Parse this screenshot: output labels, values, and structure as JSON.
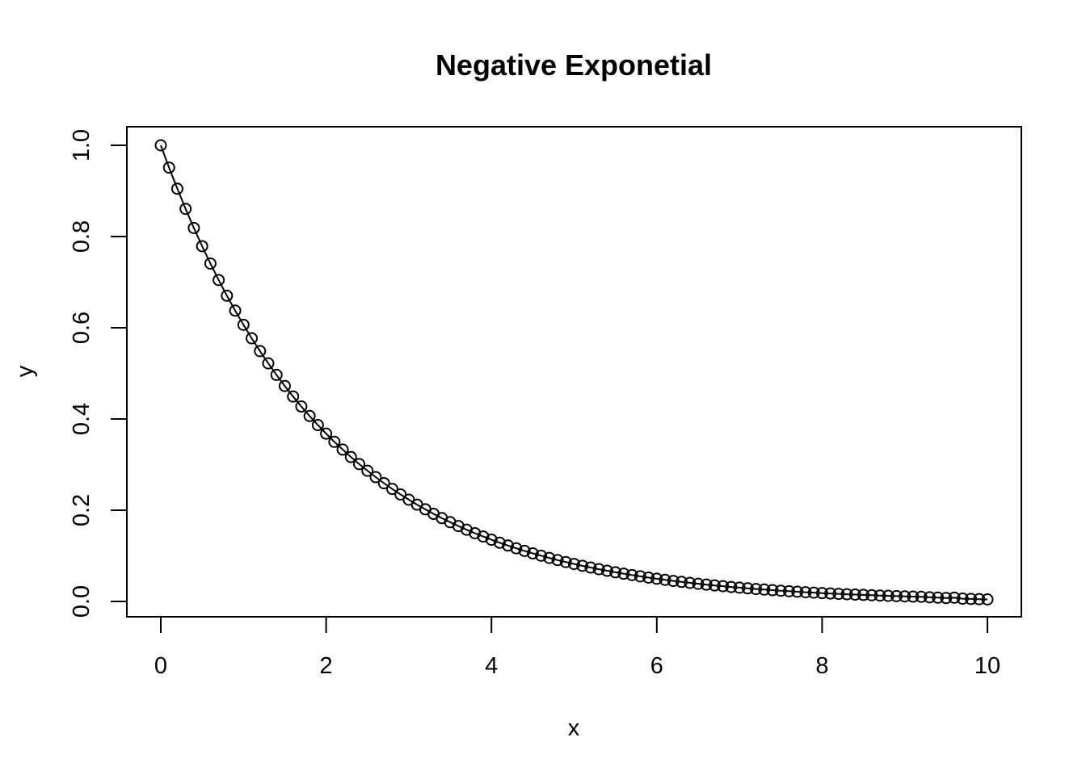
{
  "chart_data": {
    "type": "line",
    "title": "Negative Exponetial",
    "xlabel": "x",
    "ylabel": "y",
    "xlim": [
      0,
      10
    ],
    "ylim": [
      0,
      1
    ],
    "x_ticks": [
      0,
      2,
      4,
      6,
      8,
      10
    ],
    "y_ticks": [
      0.0,
      0.2,
      0.4,
      0.6,
      0.8,
      1.0
    ],
    "x_tick_labels": [
      "0",
      "2",
      "4",
      "6",
      "8",
      "10"
    ],
    "y_tick_labels": [
      "0.0",
      "0.2",
      "0.4",
      "0.6",
      "0.8",
      "1.0"
    ],
    "grid": false,
    "legend": "none",
    "marker": "open-circle",
    "line_color": "#000000",
    "series": [
      {
        "x": [
          0.0,
          0.1,
          0.2,
          0.3,
          0.4,
          0.5,
          0.6,
          0.7,
          0.8,
          0.9,
          1.0,
          1.1,
          1.2,
          1.3,
          1.4,
          1.5,
          1.6,
          1.7,
          1.8,
          1.9,
          2.0,
          2.1,
          2.2,
          2.3,
          2.4,
          2.5,
          2.6,
          2.7,
          2.8,
          2.9,
          3.0,
          3.1,
          3.2,
          3.3,
          3.4,
          3.5,
          3.6,
          3.7,
          3.8,
          3.9,
          4.0,
          4.1,
          4.2,
          4.3,
          4.4,
          4.5,
          4.6,
          4.7,
          4.8,
          4.9,
          5.0,
          5.1,
          5.2,
          5.3,
          5.4,
          5.5,
          5.6,
          5.7,
          5.8,
          5.9,
          6.0,
          6.1,
          6.2,
          6.3,
          6.4,
          6.5,
          6.6,
          6.7,
          6.8,
          6.9,
          7.0,
          7.1,
          7.2,
          7.3,
          7.4,
          7.5,
          7.6,
          7.7,
          7.8,
          7.9,
          8.0,
          8.1,
          8.2,
          8.3,
          8.4,
          8.5,
          8.6,
          8.7,
          8.8,
          8.9,
          9.0,
          9.1,
          9.2,
          9.3,
          9.4,
          9.5,
          9.6,
          9.7,
          9.8,
          9.9,
          10.0
        ],
        "y": [
          1.0,
          0.9512,
          0.9048,
          0.8607,
          0.8187,
          0.7788,
          0.7408,
          0.7047,
          0.6703,
          0.6376,
          0.6065,
          0.5769,
          0.5488,
          0.522,
          0.4966,
          0.4724,
          0.4493,
          0.4274,
          0.4066,
          0.3867,
          0.3679,
          0.3499,
          0.3329,
          0.3166,
          0.3012,
          0.2865,
          0.2725,
          0.2592,
          0.2466,
          0.2346,
          0.2231,
          0.2122,
          0.2019,
          0.192,
          0.1827,
          0.1738,
          0.1653,
          0.1572,
          0.1496,
          0.1423,
          0.1353,
          0.1287,
          0.1225,
          0.1165,
          0.1108,
          0.1054,
          0.1003,
          0.0954,
          0.0907,
          0.0863,
          0.0821,
          0.0781,
          0.0743,
          0.0707,
          0.0672,
          0.0639,
          0.0608,
          0.0578,
          0.055,
          0.0523,
          0.0498,
          0.0474,
          0.045,
          0.0429,
          0.0408,
          0.0388,
          0.0369,
          0.0351,
          0.0334,
          0.0317,
          0.0302,
          0.0287,
          0.0273,
          0.026,
          0.0247,
          0.0235,
          0.0224,
          0.0213,
          0.0202,
          0.0193,
          0.0183,
          0.0174,
          0.0166,
          0.0158,
          0.015,
          0.0143,
          0.0136,
          0.0129,
          0.0123,
          0.0117,
          0.0111,
          0.0106,
          0.0101,
          0.0091,
          0.0083,
          0.0075,
          0.0082,
          0.0061,
          0.0055,
          0.005,
          0.0045
        ]
      }
    ]
  }
}
